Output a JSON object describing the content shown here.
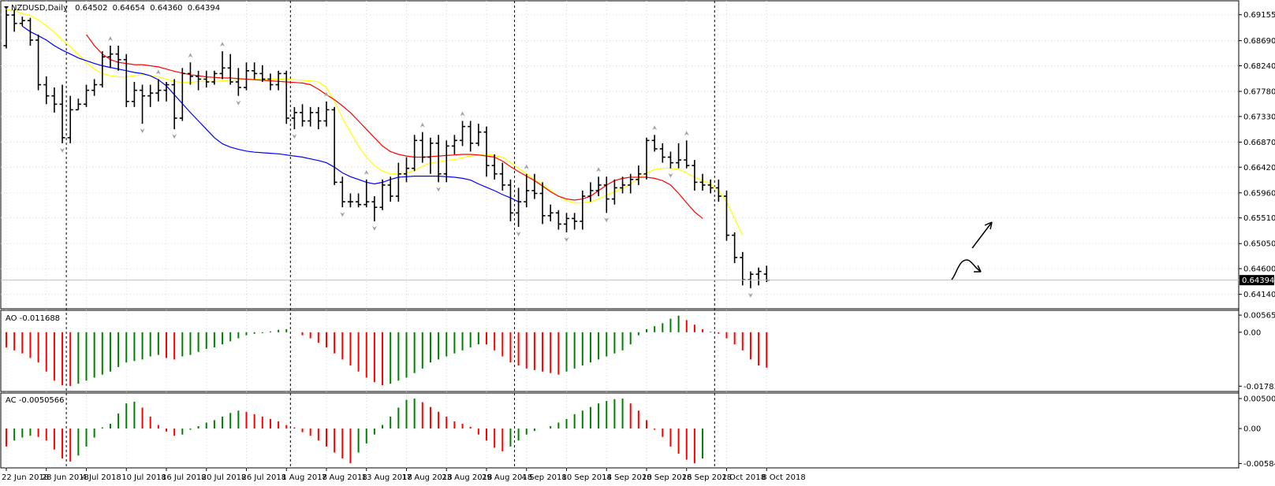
{
  "chart_data": {
    "type": "ohlc",
    "symbol": "NZDUSD",
    "timeframe": "Daily",
    "header_values": [
      "0.64502",
      "0.64654",
      "0.64360",
      "0.64394"
    ],
    "current_price": 0.64394,
    "current_price_label": "0.64394",
    "price_axis": {
      "ylim": [
        0.6405,
        0.6925
      ],
      "ticks": [
        "0.69155",
        "0.68690",
        "0.68240",
        "0.67780",
        "0.67330",
        "0.66870",
        "0.66420",
        "0.65960",
        "0.65510",
        "0.65050",
        "0.64600",
        "0.64140"
      ]
    },
    "x_labels": [
      {
        "i": 0,
        "label": "22 Jun 2018"
      },
      {
        "i": 5,
        "label": "28 Jun 2018"
      },
      {
        "i": 10,
        "label": "4 Jul 2018"
      },
      {
        "i": 15,
        "label": "10 Jul 2018"
      },
      {
        "i": 20,
        "label": "16 Jul 2018"
      },
      {
        "i": 25,
        "label": "20 Jul 2018"
      },
      {
        "i": 30,
        "label": "26 Jul 2018"
      },
      {
        "i": 35,
        "label": "1 Aug 2018"
      },
      {
        "i": 40,
        "label": "7 Aug 2018"
      },
      {
        "i": 45,
        "label": "13 Aug 2018"
      },
      {
        "i": 50,
        "label": "17 Aug 2018"
      },
      {
        "i": 55,
        "label": "23 Aug 2018"
      },
      {
        "i": 60,
        "label": "29 Aug 2018"
      },
      {
        "i": 65,
        "label": "4 Sep 2018"
      },
      {
        "i": 70,
        "label": "10 Sep 2018"
      },
      {
        "i": 75,
        "label": "14 Sep 2018"
      },
      {
        "i": 80,
        "label": "20 Sep 2018"
      },
      {
        "i": 85,
        "label": "26 Sep 2018"
      },
      {
        "i": 90,
        "label": "2 Oct 2018"
      },
      {
        "i": 95,
        "label": "8 Oct 2018"
      }
    ],
    "separators": [
      7,
      35,
      63,
      88
    ],
    "bars": [
      [
        0.686,
        0.6925,
        0.6855,
        0.6915
      ],
      [
        0.6915,
        0.6925,
        0.6885,
        0.69
      ],
      [
        0.69,
        0.6912,
        0.6895,
        0.6905
      ],
      [
        0.6905,
        0.691,
        0.686,
        0.687
      ],
      [
        0.687,
        0.688,
        0.678,
        0.679
      ],
      [
        0.679,
        0.6805,
        0.6755,
        0.677
      ],
      [
        0.677,
        0.6785,
        0.674,
        0.6755
      ],
      [
        0.6755,
        0.679,
        0.6685,
        0.6695
      ],
      [
        0.6695,
        0.677,
        0.6685,
        0.6745
      ],
      [
        0.6745,
        0.6765,
        0.6745,
        0.6755
      ],
      [
        0.6755,
        0.679,
        0.675,
        0.678
      ],
      [
        0.678,
        0.68,
        0.677,
        0.679
      ],
      [
        0.679,
        0.685,
        0.6785,
        0.684
      ],
      [
        0.684,
        0.686,
        0.682,
        0.6845
      ],
      [
        0.6845,
        0.686,
        0.6815,
        0.6835
      ],
      [
        0.6835,
        0.6845,
        0.675,
        0.676
      ],
      [
        0.676,
        0.6795,
        0.675,
        0.678
      ],
      [
        0.678,
        0.679,
        0.672,
        0.677
      ],
      [
        0.677,
        0.679,
        0.675,
        0.6775
      ],
      [
        0.6775,
        0.68,
        0.676,
        0.678
      ],
      [
        0.678,
        0.6795,
        0.676,
        0.679
      ],
      [
        0.679,
        0.68,
        0.671,
        0.673
      ],
      [
        0.673,
        0.682,
        0.6725,
        0.681
      ],
      [
        0.681,
        0.683,
        0.679,
        0.6805
      ],
      [
        0.6805,
        0.6815,
        0.678,
        0.68
      ],
      [
        0.68,
        0.6815,
        0.6785,
        0.6795
      ],
      [
        0.6795,
        0.6815,
        0.679,
        0.681
      ],
      [
        0.681,
        0.685,
        0.68,
        0.682
      ],
      [
        0.682,
        0.6845,
        0.679,
        0.6795
      ],
      [
        0.6795,
        0.682,
        0.677,
        0.6785
      ],
      [
        0.6785,
        0.683,
        0.678,
        0.6815
      ],
      [
        0.6815,
        0.683,
        0.68,
        0.681
      ],
      [
        0.681,
        0.6825,
        0.6795,
        0.68
      ],
      [
        0.68,
        0.681,
        0.678,
        0.679
      ],
      [
        0.679,
        0.6815,
        0.678,
        0.681
      ],
      [
        0.681,
        0.6815,
        0.672,
        0.673
      ],
      [
        0.673,
        0.675,
        0.671,
        0.674
      ],
      [
        0.674,
        0.6755,
        0.6715,
        0.6725
      ],
      [
        0.6725,
        0.675,
        0.6715,
        0.674
      ],
      [
        0.674,
        0.675,
        0.671,
        0.6725
      ],
      [
        0.6725,
        0.676,
        0.6715,
        0.6745
      ],
      [
        0.6745,
        0.675,
        0.661,
        0.6615
      ],
      [
        0.6615,
        0.6625,
        0.657,
        0.658
      ],
      [
        0.658,
        0.6595,
        0.657,
        0.658
      ],
      [
        0.658,
        0.6595,
        0.657,
        0.6575
      ],
      [
        0.6575,
        0.662,
        0.657,
        0.658
      ],
      [
        0.658,
        0.659,
        0.6545,
        0.657
      ],
      [
        0.657,
        0.662,
        0.6565,
        0.661
      ],
      [
        0.661,
        0.6625,
        0.658,
        0.659
      ],
      [
        0.659,
        0.665,
        0.658,
        0.663
      ],
      [
        0.663,
        0.666,
        0.6615,
        0.664
      ],
      [
        0.664,
        0.67,
        0.6635,
        0.669
      ],
      [
        0.669,
        0.6705,
        0.665,
        0.666
      ],
      [
        0.666,
        0.6695,
        0.663,
        0.6685
      ],
      [
        0.6685,
        0.67,
        0.6615,
        0.663
      ],
      [
        0.663,
        0.669,
        0.6615,
        0.668
      ],
      [
        0.668,
        0.67,
        0.6665,
        0.669
      ],
      [
        0.669,
        0.6725,
        0.668,
        0.6715
      ],
      [
        0.6715,
        0.6725,
        0.667,
        0.6685
      ],
      [
        0.6685,
        0.672,
        0.668,
        0.6705
      ],
      [
        0.6705,
        0.6715,
        0.6625,
        0.6645
      ],
      [
        0.6645,
        0.6665,
        0.662,
        0.663
      ],
      [
        0.663,
        0.665,
        0.66,
        0.661
      ],
      [
        0.661,
        0.662,
        0.6545,
        0.656
      ],
      [
        0.656,
        0.6605,
        0.6535,
        0.658
      ],
      [
        0.658,
        0.663,
        0.657,
        0.66
      ],
      [
        0.66,
        0.663,
        0.6585,
        0.6595
      ],
      [
        0.6595,
        0.6615,
        0.654,
        0.6555
      ],
      [
        0.6555,
        0.6575,
        0.6545,
        0.656
      ],
      [
        0.656,
        0.6565,
        0.653,
        0.654
      ],
      [
        0.654,
        0.656,
        0.6525,
        0.655
      ],
      [
        0.655,
        0.656,
        0.653,
        0.6545
      ],
      [
        0.6545,
        0.66,
        0.653,
        0.659
      ],
      [
        0.659,
        0.6615,
        0.658,
        0.66
      ],
      [
        0.66,
        0.6625,
        0.659,
        0.661
      ],
      [
        0.661,
        0.6625,
        0.656,
        0.6585
      ],
      [
        0.6585,
        0.662,
        0.6575,
        0.6605
      ],
      [
        0.6605,
        0.6625,
        0.6595,
        0.661
      ],
      [
        0.661,
        0.663,
        0.6595,
        0.662
      ],
      [
        0.662,
        0.6645,
        0.661,
        0.663
      ],
      [
        0.663,
        0.6695,
        0.662,
        0.669
      ],
      [
        0.669,
        0.67,
        0.667,
        0.6675
      ],
      [
        0.6675,
        0.6685,
        0.665,
        0.666
      ],
      [
        0.666,
        0.667,
        0.664,
        0.665
      ],
      [
        0.665,
        0.6685,
        0.664,
        0.6655
      ],
      [
        0.6655,
        0.669,
        0.664,
        0.6645
      ],
      [
        0.6645,
        0.6655,
        0.66,
        0.6615
      ],
      [
        0.6615,
        0.663,
        0.66,
        0.661
      ],
      [
        0.661,
        0.662,
        0.6595,
        0.6605
      ],
      [
        0.6605,
        0.662,
        0.658,
        0.659
      ],
      [
        0.659,
        0.66,
        0.651,
        0.652
      ],
      [
        0.652,
        0.6525,
        0.647,
        0.648
      ],
      [
        0.648,
        0.649,
        0.643,
        0.644
      ],
      [
        0.644,
        0.6455,
        0.6425,
        0.645
      ],
      [
        0.645,
        0.6462,
        0.643,
        0.6455
      ],
      [
        0.64502,
        0.64654,
        0.6436,
        0.64394
      ]
    ],
    "ma_series": [
      {
        "color": "#ffff00",
        "values": [
          0.6925,
          0.6922,
          0.6918,
          0.6914,
          0.6906,
          0.6896,
          0.6884,
          0.687,
          0.6858,
          0.6844,
          0.683,
          0.6818,
          0.681,
          0.6806,
          0.6804,
          0.6804,
          0.6806,
          0.6808,
          0.6806,
          0.6804,
          0.68,
          0.6796,
          0.6794,
          0.6794,
          0.6796,
          0.6796,
          0.6796,
          0.6797,
          0.6798,
          0.6799,
          0.68,
          0.68,
          0.68,
          0.68,
          0.68,
          0.68,
          0.6799,
          0.6798,
          0.6797,
          0.6795,
          0.6785,
          0.676,
          0.673,
          0.6705,
          0.668,
          0.666,
          0.6645,
          0.6635,
          0.663,
          0.663,
          0.6632,
          0.6636,
          0.6644,
          0.665,
          0.6652,
          0.6654,
          0.6656,
          0.6659,
          0.6662,
          0.6664,
          0.6665,
          0.6663,
          0.666,
          0.665,
          0.664,
          0.663,
          0.662,
          0.661,
          0.66,
          0.659,
          0.6582,
          0.6578,
          0.6578,
          0.658,
          0.6585,
          0.6592,
          0.6598,
          0.6604,
          0.6612,
          0.6622,
          0.6632,
          0.6638,
          0.664,
          0.664,
          0.6638,
          0.6632,
          0.6624,
          0.6618,
          0.6612,
          0.66,
          0.658,
          0.655,
          0.652
        ]
      },
      {
        "color": "#ff0000",
        "values": [
          null,
          null,
          null,
          null,
          null,
          null,
          null,
          null,
          null,
          null,
          0.688,
          0.686,
          0.6845,
          0.6835,
          0.683,
          0.6828,
          0.6826,
          0.6826,
          0.6824,
          0.6822,
          0.6818,
          0.6814,
          0.6811,
          0.6808,
          0.6806,
          0.6804,
          0.6803,
          0.6802,
          0.6802,
          0.6801,
          0.68,
          0.6799,
          0.6798,
          0.6797,
          0.6796,
          0.6795,
          0.6794,
          0.6793,
          0.679,
          0.6782,
          0.6772,
          0.6763,
          0.6752,
          0.674,
          0.6725,
          0.671,
          0.6695,
          0.668,
          0.667,
          0.6665,
          0.6662,
          0.666,
          0.666,
          0.6661,
          0.6662,
          0.6663,
          0.6664,
          0.6665,
          0.6665,
          0.6664,
          0.6662,
          0.666,
          0.6653,
          0.6643,
          0.6634,
          0.6626,
          0.6618,
          0.6608,
          0.6598,
          0.659,
          0.6585,
          0.6583,
          0.6585,
          0.659,
          0.66,
          0.661,
          0.6618,
          0.6622,
          0.6624,
          0.6624,
          0.6624,
          0.6622,
          0.6618,
          0.661,
          0.6595,
          0.6578,
          0.6562,
          0.655
        ]
      },
      {
        "color": "#0000ff",
        "values": [
          null,
          null,
          0.6895,
          0.6885,
          0.6878,
          0.687,
          0.686,
          0.6852,
          0.6845,
          0.6838,
          0.6833,
          0.6828,
          0.6824,
          0.6821,
          0.6818,
          0.6815,
          0.6812,
          0.681,
          0.6806,
          0.6799,
          0.6788,
          0.6772,
          0.6756,
          0.674,
          0.6725,
          0.671,
          0.6695,
          0.6684,
          0.6678,
          0.6674,
          0.6671,
          0.6669,
          0.6668,
          0.6667,
          0.6666,
          0.6664,
          0.6662,
          0.666,
          0.6657,
          0.6654,
          0.665,
          0.6642,
          0.6632,
          0.6625,
          0.662,
          0.6615,
          0.6612,
          0.6615,
          0.662,
          0.6624,
          0.6625,
          0.6626,
          0.6626,
          0.6626,
          0.6626,
          0.6625,
          0.6624,
          0.6622,
          0.6619,
          0.6612,
          0.6606,
          0.66,
          0.6593,
          0.6587,
          0.658
        ]
      }
    ],
    "ao": {
      "label": "AO -0.011688",
      "ylim": [
        -0.0188,
        0.0062
      ],
      "ticks": [
        {
          "v": 0.005658,
          "label": "0.005658"
        },
        {
          "v": 0.0,
          "label": "0.00"
        },
        {
          "v": -0.017834,
          "label": "-0.017834"
        }
      ],
      "values": [
        -0.005,
        -0.006,
        -0.007,
        -0.0085,
        -0.01,
        -0.013,
        -0.016,
        -0.0175,
        -0.0178,
        -0.017,
        -0.016,
        -0.015,
        -0.014,
        -0.013,
        -0.0115,
        -0.01,
        -0.0095,
        -0.009,
        -0.008,
        -0.0075,
        -0.0085,
        -0.009,
        -0.008,
        -0.0075,
        -0.0065,
        -0.0055,
        -0.005,
        -0.004,
        -0.003,
        -0.002,
        -0.001,
        -0.0005,
        -0.0003,
        0.0003,
        0.0008,
        0.001,
        0.0,
        -0.001,
        -0.002,
        -0.0035,
        -0.005,
        -0.007,
        -0.009,
        -0.011,
        -0.013,
        -0.015,
        -0.0165,
        -0.0175,
        -0.017,
        -0.016,
        -0.015,
        -0.0135,
        -0.012,
        -0.01,
        -0.009,
        -0.008,
        -0.007,
        -0.006,
        -0.005,
        -0.004,
        -0.004,
        -0.006,
        -0.008,
        -0.01,
        -0.011,
        -0.012,
        -0.0125,
        -0.013,
        -0.0135,
        -0.014,
        -0.013,
        -0.012,
        -0.011,
        -0.01,
        -0.009,
        -0.008,
        -0.007,
        -0.006,
        -0.004,
        -0.001,
        0.001,
        0.002,
        0.003,
        0.0045,
        0.0055,
        0.004,
        0.0025,
        0.001,
        0.0002,
        -0.0005,
        -0.002,
        -0.004,
        -0.006,
        -0.009,
        -0.011,
        -0.0117
      ]
    },
    "ac": {
      "label": "AC -0.0050566",
      "ylim": [
        -0.0063,
        0.0054
      ],
      "ticks": [
        {
          "v": 0.005006,
          "label": "0.005006"
        },
        {
          "v": 0.0,
          "label": "0.00"
        },
        {
          "v": -0.005847,
          "label": "-0.005847"
        }
      ],
      "values": [
        -0.003,
        -0.002,
        -0.0015,
        -0.0012,
        -0.0014,
        -0.002,
        -0.0035,
        -0.005,
        -0.0055,
        -0.0045,
        -0.003,
        -0.0015,
        0.0002,
        0.0008,
        0.0025,
        0.0042,
        0.0045,
        0.0035,
        0.002,
        0.0006,
        -0.0005,
        -0.0012,
        -0.001,
        -0.0002,
        0.0004,
        0.001,
        0.0014,
        0.002,
        0.0026,
        0.003,
        0.0028,
        0.0024,
        0.002,
        0.0016,
        0.0012,
        0.0006,
        0.0002,
        -0.0006,
        -0.0012,
        -0.002,
        -0.003,
        -0.004,
        -0.005,
        -0.0058,
        -0.004,
        -0.0025,
        -0.001,
        0.0006,
        0.002,
        0.0035,
        0.0048,
        0.005,
        0.0044,
        0.0036,
        0.0028,
        0.002,
        0.0012,
        0.0008,
        0.0003,
        -0.001,
        -0.002,
        -0.0032,
        -0.0038,
        -0.003,
        -0.002,
        -0.001,
        -0.0004,
        0.0,
        0.0004,
        0.001,
        0.0016,
        0.0024,
        0.003,
        0.0036,
        0.0042,
        0.0046,
        0.0049,
        0.005,
        0.0042,
        0.003,
        0.0014,
        -0.0002,
        -0.0014,
        -0.003,
        -0.0042,
        -0.0052,
        -0.0058,
        -0.005
      ]
    }
  }
}
